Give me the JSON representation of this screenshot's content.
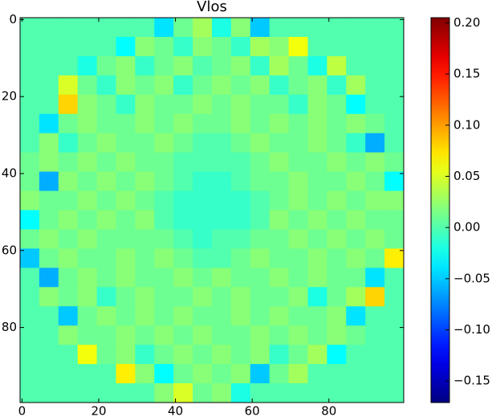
{
  "chart_data": {
    "type": "heatmap",
    "title": "Vlos",
    "xlim": [
      -0.5,
      99.5
    ],
    "ylim": [
      99.5,
      -0.5
    ],
    "xticks": [
      0,
      20,
      40,
      60,
      80
    ],
    "yticks": [
      0,
      20,
      40,
      60,
      80
    ],
    "colormap": "jet",
    "clim": [
      -0.171,
      0.205
    ],
    "cticks": [
      {
        "value": -0.15,
        "label": "−0.15"
      },
      {
        "value": -0.1,
        "label": "−0.10"
      },
      {
        "value": -0.05,
        "label": "−0.05"
      },
      {
        "value": 0,
        "label": "0.00"
      },
      {
        "value": 0.05,
        "label": "0.05"
      },
      {
        "value": 0.1,
        "label": "0.10"
      },
      {
        "value": 0.15,
        "label": "0.15"
      },
      {
        "value": 0.2,
        "label": "0.20"
      }
    ],
    "z": [
      [
        0,
        0,
        0,
        0,
        0,
        0,
        0,
        -0.04,
        0.01,
        0.03,
        -0.02,
        0.02,
        -0.05,
        0,
        0,
        0,
        0,
        0,
        0,
        0
      ],
      [
        0,
        0,
        0,
        0,
        0,
        -0.03,
        0.02,
        0.01,
        -0.01,
        0.02,
        0.01,
        -0.01,
        0.03,
        0.02,
        0.06,
        0,
        0,
        0,
        0,
        0
      ],
      [
        0,
        0,
        0,
        -0.02,
        0.01,
        0.02,
        -0.01,
        0.01,
        0.02,
        0,
        0.01,
        0.02,
        -0.01,
        0.03,
        0.01,
        -0.02,
        0.04,
        0,
        0,
        0
      ],
      [
        0,
        0,
        0.05,
        0.01,
        -0.01,
        0.02,
        0.01,
        0.02,
        -0.01,
        0.01,
        0.02,
        0.01,
        0.02,
        -0.01,
        0.01,
        0.02,
        -0.01,
        0.03,
        0,
        0
      ],
      [
        0,
        0,
        0.08,
        0.02,
        0.01,
        -0.01,
        0.02,
        0.01,
        0.01,
        0.02,
        0.01,
        0.02,
        0.01,
        0.01,
        -0.01,
        0.02,
        0.01,
        -0.03,
        0,
        0
      ],
      [
        0,
        -0.04,
        0.01,
        0.02,
        0.01,
        0.01,
        0.02,
        0.01,
        0.02,
        0.01,
        0.01,
        0.02,
        0.01,
        0.02,
        0.01,
        0.02,
        0.01,
        0.02,
        0.01,
        0
      ],
      [
        0,
        0.02,
        -0.01,
        0.01,
        0.02,
        0.01,
        0.01,
        0.02,
        0.01,
        0,
        0,
        0.01,
        0.02,
        0.01,
        0.01,
        0.02,
        0.01,
        -0.01,
        -0.06,
        0
      ],
      [
        0.01,
        0.02,
        0.01,
        0.02,
        0.01,
        0.02,
        0.01,
        0.01,
        0,
        0,
        0,
        0,
        0.01,
        0.02,
        0.01,
        0.01,
        0.02,
        0.01,
        0.02,
        0.01
      ],
      [
        0.01,
        -0.06,
        0.02,
        0.01,
        0.02,
        0.01,
        0.02,
        0.01,
        0,
        -0.01,
        -0.01,
        0,
        0.01,
        0.01,
        0.02,
        0.01,
        0.01,
        0.02,
        0.01,
        -0.03
      ],
      [
        0.02,
        0.01,
        0.01,
        0.02,
        0.01,
        0.02,
        0.01,
        0,
        -0.01,
        -0.01,
        -0.01,
        -0.01,
        0,
        0.01,
        0.02,
        0.01,
        0.02,
        0.01,
        0.02,
        0.02
      ],
      [
        -0.03,
        0.01,
        0.02,
        0.01,
        0.02,
        0.01,
        0.02,
        0,
        -0.01,
        -0.01,
        -0.01,
        -0.01,
        0,
        0.02,
        0.01,
        0.02,
        0.01,
        0.02,
        0.01,
        0.01
      ],
      [
        0.01,
        0.02,
        0.01,
        0.02,
        0.01,
        0.01,
        0.01,
        0.01,
        0,
        -0.01,
        0,
        0,
        0.01,
        0.01,
        0.02,
        0.01,
        0.02,
        0.01,
        0.02,
        0.01
      ],
      [
        -0.05,
        0.01,
        0.02,
        0.01,
        0.01,
        0.02,
        0.01,
        0.02,
        0.01,
        0,
        0,
        0.01,
        0.02,
        0.01,
        0.01,
        0.02,
        0.01,
        0.02,
        0.01,
        0.07
      ],
      [
        0,
        -0.06,
        0.01,
        0.02,
        0.01,
        0.02,
        0.01,
        0.01,
        0.02,
        0.01,
        0.02,
        0.01,
        0.01,
        0.02,
        0.01,
        0.02,
        0.01,
        0.01,
        -0.04,
        0
      ],
      [
        0,
        0.02,
        0.01,
        0.02,
        -0.01,
        0.01,
        0.02,
        0.01,
        0.01,
        0.02,
        0.01,
        0.02,
        0.01,
        0.01,
        0.02,
        -0.02,
        0.01,
        0.03,
        0.08,
        0
      ],
      [
        0,
        0,
        -0.05,
        0.01,
        0.02,
        0.01,
        0.02,
        0.01,
        0.02,
        0.01,
        0.01,
        0.02,
        0.01,
        0.02,
        0.01,
        0.01,
        0.02,
        -0.04,
        0,
        0
      ],
      [
        0,
        0,
        0.02,
        0.01,
        0.01,
        0.02,
        0.01,
        0.02,
        0.01,
        0.02,
        0.01,
        0.01,
        0.02,
        0.01,
        0.02,
        0.01,
        0.02,
        0.01,
        0,
        0
      ],
      [
        0,
        0,
        0,
        0.06,
        0.01,
        0.02,
        -0.01,
        0.01,
        0.02,
        0.01,
        0.02,
        0.01,
        0.02,
        -0.01,
        0.01,
        0.03,
        -0.03,
        0,
        0,
        0
      ],
      [
        0,
        0,
        0,
        0,
        0,
        0.07,
        0.02,
        -0.03,
        0.01,
        0.02,
        0.01,
        0.02,
        -0.05,
        0.01,
        0.03,
        0,
        0,
        0,
        0,
        0
      ],
      [
        0,
        0,
        0,
        0,
        0,
        0,
        0,
        0.02,
        0.05,
        0.01,
        0.02,
        -0.02,
        0,
        0,
        0,
        0,
        0,
        0,
        0,
        0
      ]
    ]
  }
}
